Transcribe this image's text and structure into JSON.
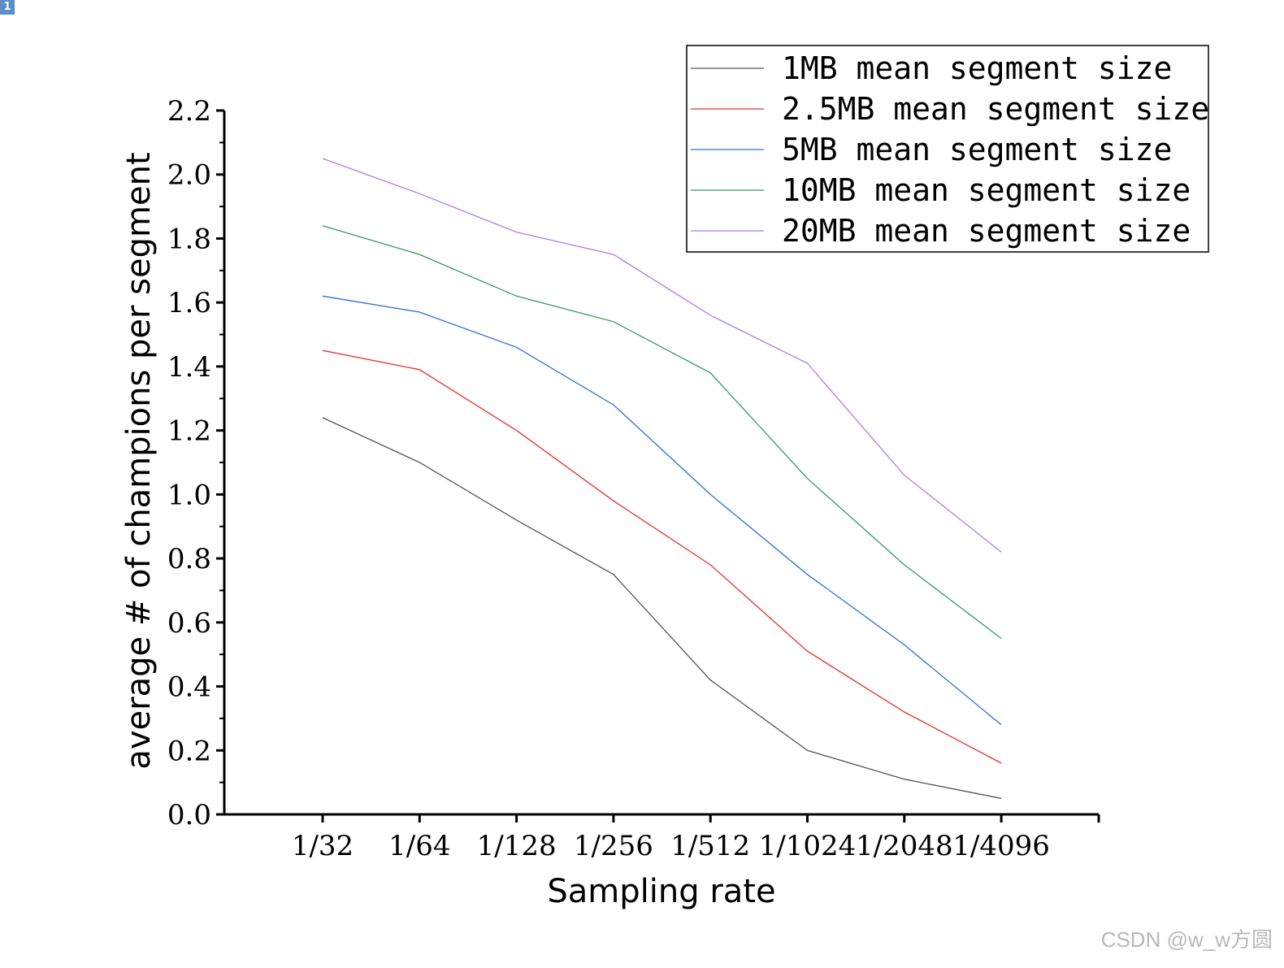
{
  "corner_badge": "1",
  "watermark": "CSDN @w_w方圆",
  "chart_data": {
    "type": "line",
    "title": "",
    "xlabel": "Sampling rate",
    "ylabel": "average # of champions per segment",
    "categories": [
      "1/32",
      "1/64",
      "1/128",
      "1/256",
      "1/512",
      "1/1024",
      "1/2048",
      "1/4096"
    ],
    "yticks": [
      "0.0",
      "0.2",
      "0.4",
      "0.6",
      "0.8",
      "1.0",
      "1.2",
      "1.4",
      "1.6",
      "1.8",
      "2.0",
      "2.2"
    ],
    "ylim": [
      0,
      2.2
    ],
    "grid": false,
    "legend_position": "top-right",
    "series": [
      {
        "name": "1MB mean segment size",
        "color": "#555555",
        "values": [
          1.24,
          1.1,
          0.92,
          0.75,
          0.42,
          0.2,
          0.11,
          0.05
        ]
      },
      {
        "name": "2.5MB mean segment size",
        "color": "#e8302a",
        "values": [
          1.45,
          1.39,
          1.2,
          0.98,
          0.78,
          0.51,
          0.32,
          0.16
        ]
      },
      {
        "name": "5MB mean segment size",
        "color": "#2a6fd6",
        "values": [
          1.62,
          1.57,
          1.46,
          1.28,
          1.0,
          0.75,
          0.53,
          0.28
        ]
      },
      {
        "name": "10MB mean segment size",
        "color": "#2e9e5a",
        "values": [
          1.84,
          1.75,
          1.62,
          1.54,
          1.38,
          1.05,
          0.78,
          0.55
        ]
      },
      {
        "name": "20MB mean segment size",
        "color": "#b07ae6",
        "values": [
          2.05,
          1.94,
          1.82,
          1.75,
          1.56,
          1.41,
          1.06,
          0.82
        ]
      }
    ]
  }
}
